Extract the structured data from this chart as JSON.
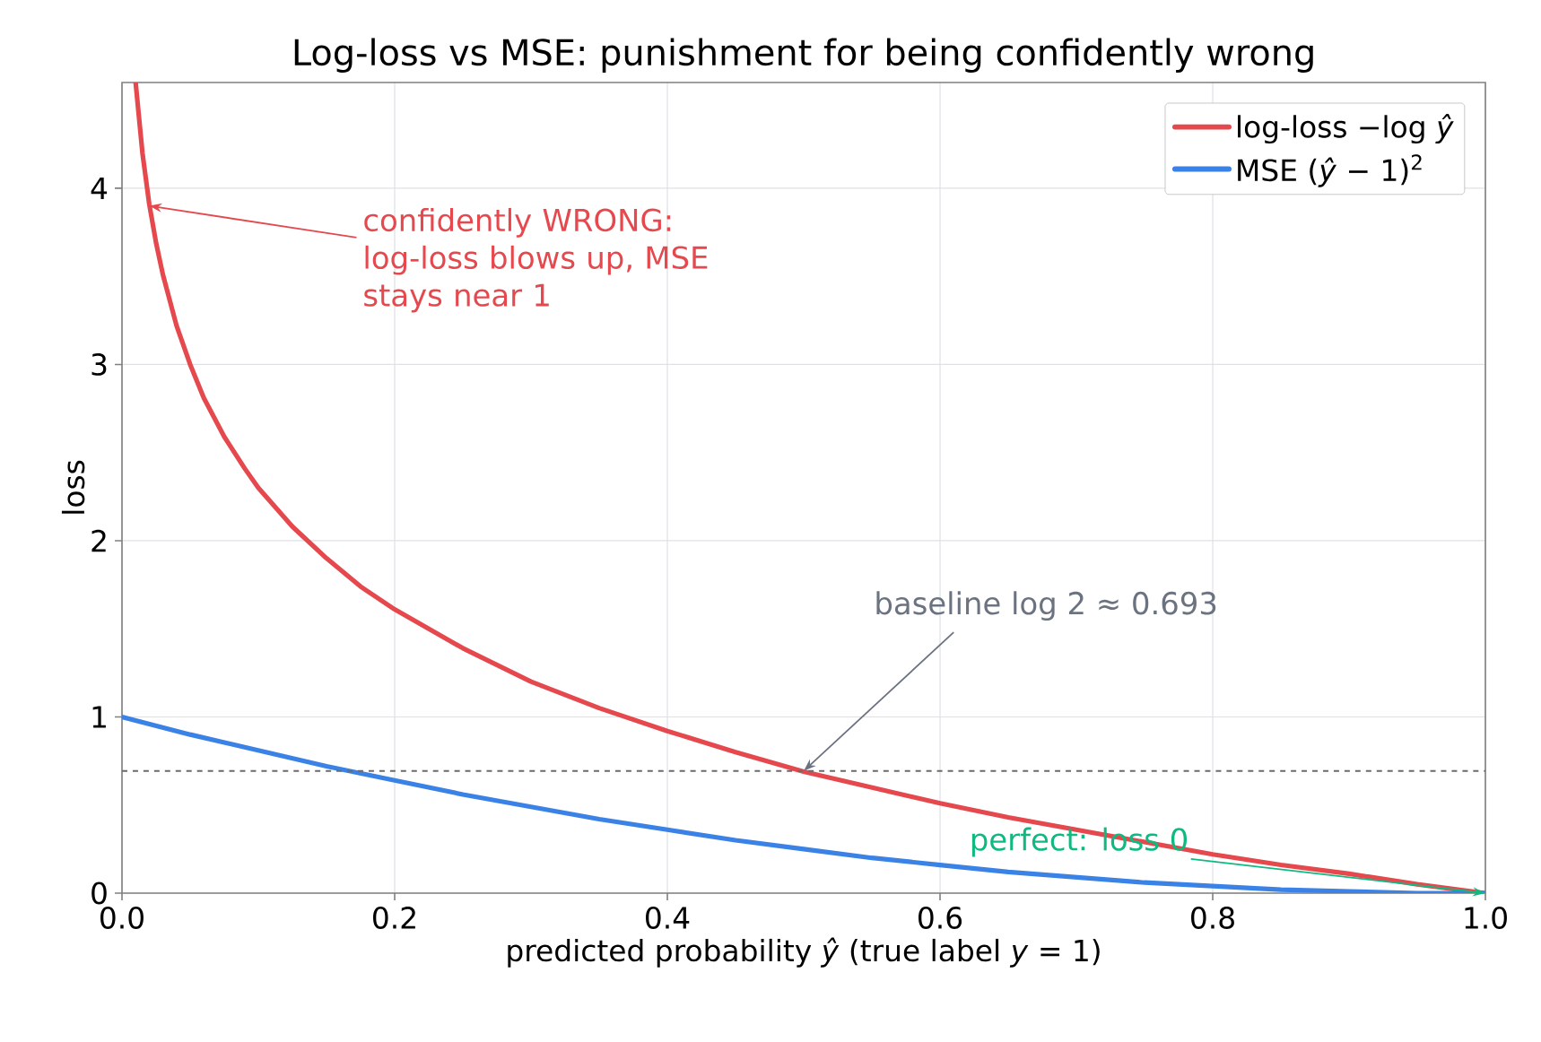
{
  "chart_data": {
    "type": "line",
    "title": "Log-loss vs MSE: punishment for being confidently wrong",
    "xlabel": "predicted probability *ŷ*   (true label *y* = 1)",
    "ylabel": "loss",
    "series": [
      {
        "name": "log-loss −log *ŷ*",
        "color": "#e5484d",
        "x": [
          0.01,
          0.015,
          0.02,
          0.025,
          0.03,
          0.04,
          0.05,
          0.06,
          0.075,
          0.09,
          0.1,
          0.125,
          0.15,
          0.175,
          0.2,
          0.25,
          0.3,
          0.35,
          0.4,
          0.45,
          0.5,
          0.55,
          0.6,
          0.65,
          0.7,
          0.75,
          0.8,
          0.85,
          0.9,
          0.95,
          1.0
        ],
        "values": [
          4.6,
          4.2,
          3.91,
          3.69,
          3.51,
          3.22,
          3.0,
          2.81,
          2.59,
          2.41,
          2.3,
          2.08,
          1.9,
          1.74,
          1.61,
          1.39,
          1.2,
          1.05,
          0.92,
          0.8,
          0.69,
          0.6,
          0.51,
          0.43,
          0.36,
          0.29,
          0.22,
          0.16,
          0.11,
          0.05,
          0.0
        ]
      },
      {
        "name": "MSE (*ŷ* − 1)$^{2}$",
        "color": "#3b82e6",
        "x": [
          0.0,
          0.05,
          0.1,
          0.15,
          0.2,
          0.25,
          0.3,
          0.35,
          0.4,
          0.45,
          0.5,
          0.55,
          0.6,
          0.65,
          0.7,
          0.75,
          0.8,
          0.85,
          0.9,
          0.95,
          1.0
        ],
        "values": [
          1.0,
          0.9,
          0.81,
          0.72,
          0.64,
          0.56,
          0.49,
          0.42,
          0.36,
          0.3,
          0.25,
          0.2,
          0.16,
          0.12,
          0.09,
          0.06,
          0.04,
          0.02,
          0.01,
          0.0,
          0.0
        ]
      }
    ],
    "xlim": [
      0,
      1
    ],
    "ylim": [
      0,
      4.6
    ],
    "xticks": [
      {
        "value": 0,
        "label": "0.0"
      },
      {
        "value": 0.2,
        "label": "0.2"
      },
      {
        "value": 0.4,
        "label": "0.4"
      },
      {
        "value": 0.6,
        "label": "0.6"
      },
      {
        "value": 0.8,
        "label": "0.8"
      },
      {
        "value": 1.0,
        "label": "1.0"
      }
    ],
    "yticks": [
      0,
      1,
      2,
      3,
      4
    ],
    "ref_lines": [
      {
        "axis": "y",
        "value": 0.693,
        "color": "#6b6b6b",
        "line_style": "dashed"
      }
    ],
    "annotations": [
      {
        "text": "confidently WRONG: log-loss blows up, MSE stays near 1",
        "x": 0.02,
        "y": 3.9
      },
      {
        "text": "baseline log 2 ≈ 0.693",
        "x": 0.5,
        "y": 0.693
      },
      {
        "text": "perfect: loss 0",
        "x": 1.0,
        "y": 0.0
      }
    ],
    "grid": true,
    "legend": "top right",
    "marker": "none",
    "line_style": "solid"
  }
}
